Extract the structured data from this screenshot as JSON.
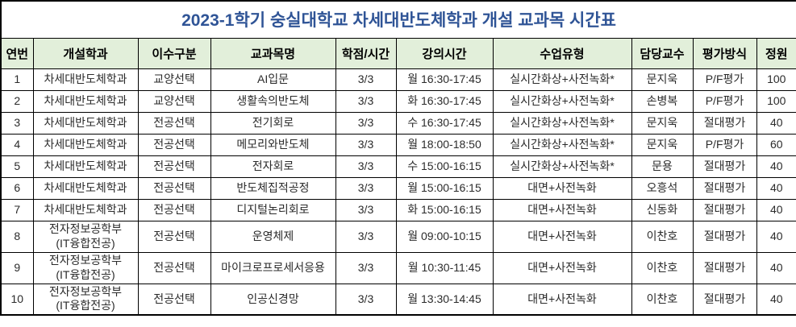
{
  "title": "2023-1학기 숭실대학교 차세대반도체학과 개설 교과목 시간표",
  "colors": {
    "title_text": "#2F5496",
    "header_bg": "#E2EFDA",
    "border": "#000000",
    "body_text": "#2b2b2b"
  },
  "table": {
    "headers": [
      "연번",
      "개설학과",
      "이수구분",
      "교과목명",
      "학점/시간",
      "강의시간",
      "수업유형",
      "담당교수",
      "평가방식",
      "정원"
    ],
    "rows": [
      [
        "1",
        "차세대반도체학과",
        "교양선택",
        "AI입문",
        "3/3",
        "월 16:30-17:45",
        "실시간화상+사전녹화*",
        "문지욱",
        "P/F평가",
        "100"
      ],
      [
        "2",
        "차세대반도체학과",
        "교양선택",
        "생활속의반도체",
        "3/3",
        "화 16:30-17:45",
        "실시간화상+사전녹화*",
        "손병복",
        "P/F평가",
        "100"
      ],
      [
        "3",
        "차세대반도체학과",
        "전공선택",
        "전기회로",
        "3/3",
        "수 16:30-17:45",
        "실시간화상+사전녹화*",
        "문지욱",
        "절대평가",
        "40"
      ],
      [
        "4",
        "차세대반도체학과",
        "전공선택",
        "메모리와반도체",
        "3/3",
        "월 18:00-18:50",
        "실시간화상+사전녹화*",
        "문지욱",
        "P/F평가",
        "60"
      ],
      [
        "5",
        "차세대반도체학과",
        "전공선택",
        "전자회로",
        "3/3",
        "수 15:00-16:15",
        "실시간화상+사전녹화*",
        "문용",
        "절대평가",
        "40"
      ],
      [
        "6",
        "차세대반도체학과",
        "전공선택",
        "반도체집적공정",
        "3/3",
        "월 15:00-16:15",
        "대면+사전녹화",
        "오흥석",
        "절대평가",
        "40"
      ],
      [
        "7",
        "차세대반도체학과",
        "전공선택",
        "디지털논리회로",
        "3/3",
        "화 15:00-16:15",
        "대면+사전녹화",
        "신동화",
        "절대평가",
        "40"
      ],
      [
        "8",
        "전자정보공학부\n(IT융합전공)",
        "전공선택",
        "운영체제",
        "3/3",
        "월 09:00-10:15",
        "대면+사전녹화",
        "이찬호",
        "절대평가",
        "40"
      ],
      [
        "9",
        "전자정보공학부\n(IT융합전공)",
        "전공선택",
        "마이크로프로세서응용",
        "3/3",
        "월 10:30-11:45",
        "대면+사전녹화",
        "이찬호",
        "절대평가",
        "40"
      ],
      [
        "10",
        "전자정보공학부\n(IT융합전공)",
        "전공선택",
        "인공신경망",
        "3/3",
        "월 13:30-14:45",
        "대면+사전녹화",
        "이찬호",
        "절대평가",
        "40"
      ]
    ]
  }
}
